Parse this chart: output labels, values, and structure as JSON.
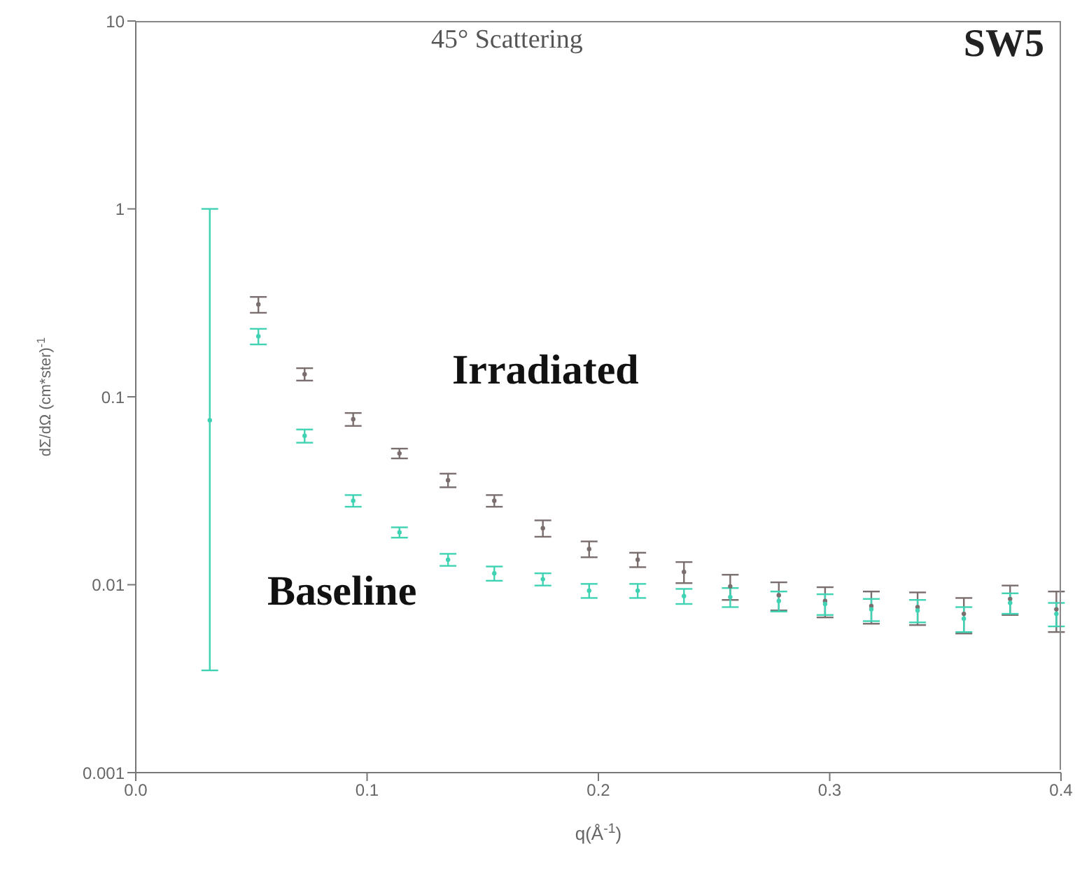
{
  "chart_data": {
    "type": "scatter",
    "title": "45° Scattering",
    "annotations": [
      "SW5"
    ],
    "xlabel": "q(Å$^{-1}$)",
    "ylabel": "dΣ/dΩ (cm*ster)$^{-1}$",
    "series": [
      {
        "name": "Irradiated",
        "color": "#7a6e6e",
        "x": [
          0.053,
          0.073,
          0.094,
          0.114,
          0.135,
          0.155,
          0.176,
          0.196,
          0.217,
          0.237,
          0.257,
          0.278,
          0.298,
          0.318,
          0.338,
          0.358,
          0.378,
          0.398
        ],
        "values": [
          0.31,
          0.132,
          0.076,
          0.05,
          0.036,
          0.028,
          0.02,
          0.0155,
          0.0136,
          0.0117,
          0.0098,
          0.0088,
          0.0082,
          0.0077,
          0.0076,
          0.007,
          0.0084,
          0.0074
        ],
        "errors": [
          0.03,
          0.01,
          0.006,
          0.003,
          0.003,
          0.002,
          0.002,
          0.0015,
          0.0012,
          0.0015,
          0.0015,
          0.0015,
          0.0015,
          0.0015,
          0.0015,
          0.0015,
          0.0015,
          0.0018
        ]
      },
      {
        "name": "Baseline",
        "color": "#3fd3b3",
        "x": [
          0.032,
          0.053,
          0.073,
          0.094,
          0.114,
          0.135,
          0.155,
          0.176,
          0.196,
          0.217,
          0.237,
          0.257,
          0.278,
          0.298,
          0.318,
          0.338,
          0.358,
          0.378,
          0.398
        ],
        "values": [
          0.075,
          0.21,
          0.062,
          0.028,
          0.019,
          0.0136,
          0.0115,
          0.0107,
          0.0093,
          0.0093,
          0.0087,
          0.0086,
          0.0082,
          0.0079,
          0.0074,
          0.0073,
          0.0066,
          0.008,
          0.007
        ],
        "errors": [
          [
            0.0035,
            1
          ],
          0.02,
          0.005,
          0.002,
          0.0012,
          0.001,
          0.001,
          0.0008,
          0.0008,
          0.0008,
          0.0008,
          0.001,
          0.001,
          0.001,
          0.001,
          0.001,
          0.001,
          0.001,
          0.001
        ]
      }
    ],
    "xlim": [
      0,
      0.4
    ],
    "xticks": [
      {
        "value": 0,
        "label": "0.0"
      },
      0.1,
      0.2,
      0.3,
      0.4
    ],
    "ylim": [
      0.001,
      10
    ],
    "yticks": [
      0.001,
      0.01,
      0.1,
      1,
      10
    ],
    "log": true,
    "legend": false,
    "marker": "circle"
  }
}
